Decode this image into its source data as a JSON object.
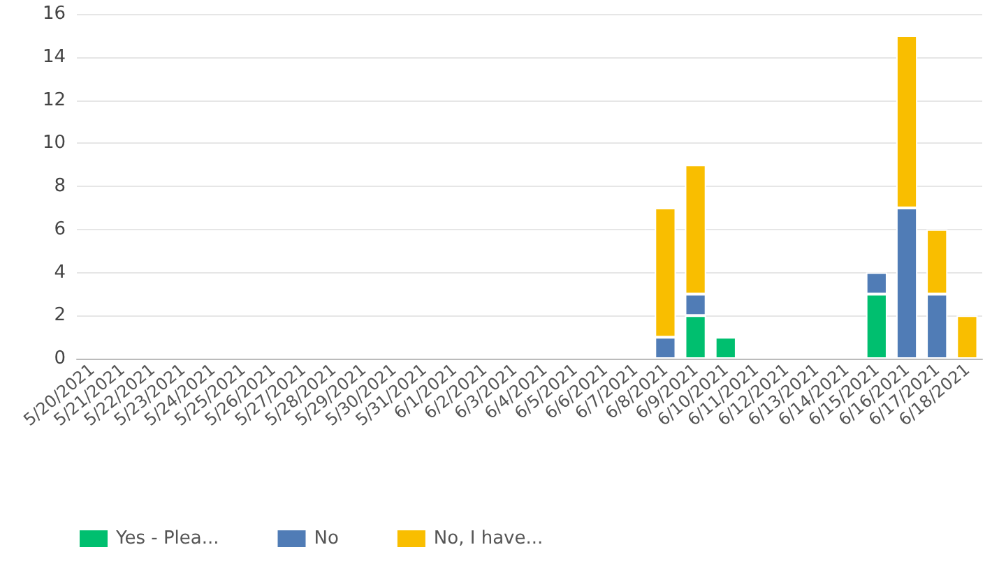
{
  "chart_data": {
    "type": "bar",
    "stacked": true,
    "categories": [
      "5/20/2021",
      "5/21/2021",
      "5/22/2021",
      "5/23/2021",
      "5/24/2021",
      "5/25/2021",
      "5/26/2021",
      "5/27/2021",
      "5/28/2021",
      "5/29/2021",
      "5/30/2021",
      "5/31/2021",
      "6/1/2021",
      "6/2/2021",
      "6/3/2021",
      "6/4/2021",
      "6/5/2021",
      "6/6/2021",
      "6/7/2021",
      "6/8/2021",
      "6/9/2021",
      "6/10/2021",
      "6/11/2021",
      "6/12/2021",
      "6/13/2021",
      "6/14/2021",
      "6/15/2021",
      "6/16/2021",
      "6/17/2021",
      "6/18/2021"
    ],
    "series": [
      {
        "name": "Yes - Plea...",
        "color": "#00bf6f",
        "values": [
          0,
          0,
          0,
          0,
          0,
          0,
          0,
          0,
          0,
          0,
          0,
          0,
          0,
          0,
          0,
          0,
          0,
          0,
          0,
          0,
          2,
          1,
          0,
          0,
          0,
          0,
          3,
          0,
          0,
          0
        ]
      },
      {
        "name": "No",
        "color": "#507cb6",
        "values": [
          0,
          0,
          0,
          0,
          0,
          0,
          0,
          0,
          0,
          0,
          0,
          0,
          0,
          0,
          0,
          0,
          0,
          0,
          0,
          1,
          1,
          0,
          0,
          0,
          0,
          0,
          1,
          7,
          3,
          0
        ]
      },
      {
        "name": "No, I have...",
        "color": "#f9be00",
        "values": [
          0,
          0,
          0,
          0,
          0,
          0,
          0,
          0,
          0,
          0,
          0,
          0,
          0,
          0,
          0,
          0,
          0,
          0,
          0,
          6,
          6,
          0,
          0,
          0,
          0,
          0,
          0,
          8,
          3,
          2
        ]
      }
    ],
    "ylim": [
      0,
      16
    ],
    "yticks": [
      0,
      2,
      4,
      6,
      8,
      10,
      12,
      14,
      16
    ],
    "grid": "y",
    "legend": "bottom left"
  }
}
